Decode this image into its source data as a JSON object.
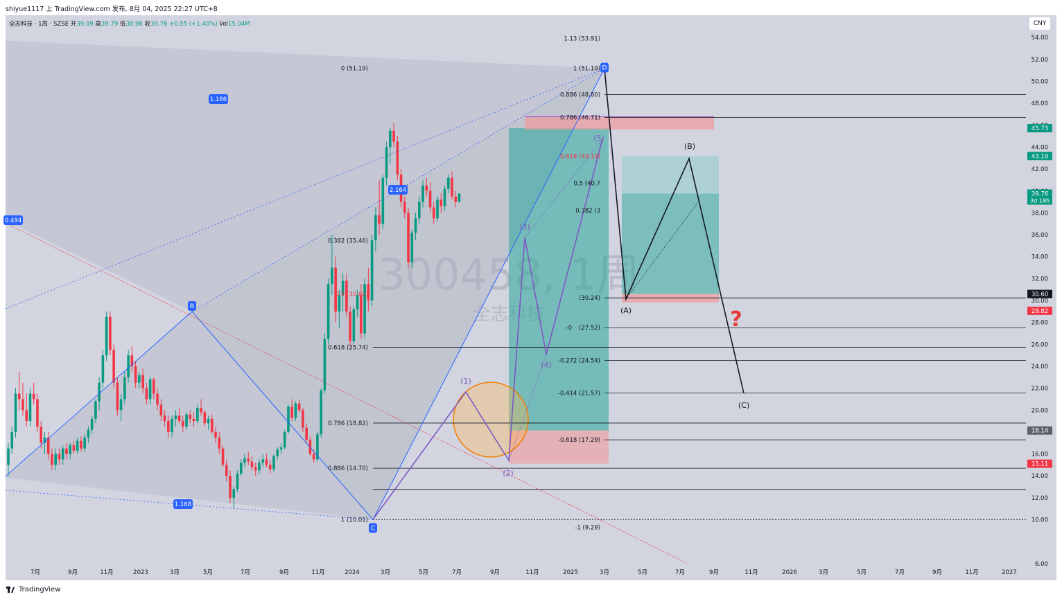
{
  "header": {
    "text": "shiyue1117 上 TradingView.com 发布, 8月 04, 2025 22:27 UTC+8"
  },
  "legend": {
    "symbol": "全志科技 · 1周 · SZSE",
    "open_label": "开",
    "open": "39.09",
    "high_label": "高",
    "high": "39.79",
    "low_label": "低",
    "low": "38.98",
    "close_label": "收",
    "close": "39.76",
    "change": "+0.55 (+1.40%)",
    "vol_label": "Vol",
    "vol": "15.04M"
  },
  "currency_button": "CNY",
  "footer": {
    "brand": "TradingView"
  },
  "colors": {
    "background": "#d2d5e0",
    "up": "#089981",
    "down": "#f23645",
    "harmonic": "#2962ff",
    "wave": "#7e57c2",
    "target_zone": "#26a69a",
    "stop_zone": "#ef9a9a"
  },
  "chart_data": {
    "type": "candlestick",
    "watermark_main": "300458, 1周",
    "watermark_sub": "全志科技",
    "y_ticks": [
      "54.00",
      "52.00",
      "50.00",
      "48.00",
      "46.00",
      "44.00",
      "42.00",
      "40.00",
      "38.00",
      "36.00",
      "34.00",
      "32.00",
      "30.00",
      "28.00",
      "26.00",
      "24.00",
      "22.00",
      "20.00",
      "18.00",
      "16.00",
      "14.00",
      "12.00",
      "10.00",
      "6.00"
    ],
    "ylim": [
      6,
      56
    ],
    "x_ticks": [
      "7月",
      "9月",
      "11月",
      "2023",
      "3月",
      "5月",
      "7月",
      "9月",
      "11月",
      "2024",
      "3月",
      "5月",
      "7月",
      "9月",
      "11月",
      "2025",
      "3月",
      "5月",
      "7月",
      "9月",
      "11月",
      "2026",
      "3月",
      "5月",
      "7月",
      "9月",
      "11月",
      "2027"
    ],
    "price_labels": [
      {
        "value": "45.73",
        "color": "#089981"
      },
      {
        "value": "43.19",
        "color": "#089981"
      },
      {
        "value": "39.76",
        "sub": "3d 18h",
        "color": "#089981"
      },
      {
        "value": "30.60",
        "color": "#131722"
      },
      {
        "value": "29.82",
        "color": "#f23645"
      },
      {
        "value": "18.14",
        "color": "#5d606b"
      },
      {
        "value": "15.11",
        "color": "#f23645"
      }
    ],
    "harmonic_points": [
      {
        "label": "B",
        "price": 29.0
      },
      {
        "label": "C",
        "price": 10.01
      },
      {
        "label": "D",
        "price": 51.19
      }
    ],
    "ratio_badges": [
      "0.494",
      "1.166",
      "2.164",
      "1.168"
    ],
    "fib_left": [
      {
        "text": "0 (51.19)",
        "price": 51.19,
        "color": "#131722"
      },
      {
        "text": "0.382 (35.46)",
        "price": 35.46,
        "color": "#131722"
      },
      {
        "text": "0.5 (30.60)",
        "price": 30.6,
        "color": "#f23645"
      },
      {
        "text": "0.618 (25.74)",
        "price": 25.74,
        "color": "#131722"
      },
      {
        "text": "0.786 (18.82)",
        "price": 18.82,
        "color": "#131722"
      },
      {
        "text": "0.886 (14.70)",
        "price": 14.7,
        "color": "#131722"
      },
      {
        "text": "1 (10.01)",
        "price": 10.01,
        "color": "#131722"
      }
    ],
    "fib_right": [
      {
        "text": "1.13 (53.91)",
        "price": 53.91,
        "color": "#131722"
      },
      {
        "text": "1 (51.19)",
        "price": 51.19,
        "color": "#131722"
      },
      {
        "text": "0.886 (48.80)",
        "price": 48.8,
        "color": "#131722"
      },
      {
        "text": "0.786 (46.71)",
        "price": 46.71,
        "color": "#131722"
      },
      {
        "text": "0.618 (43.19)",
        "price": 43.19,
        "color": "#f23645"
      },
      {
        "text": "0.5 (40.7",
        "price": 40.7,
        "color": "#131722"
      },
      {
        "text": "0.382 (3",
        "price": 38.2,
        "color": "#131722"
      },
      {
        "text": "(30.24)",
        "price": 30.24,
        "color": "#131722"
      },
      {
        "text": "-0",
        "price": 27.52,
        "color": "#131722"
      },
      {
        "text": "(27.52)",
        "price": 27.52,
        "color": "#131722"
      },
      {
        "text": "-0.272 (24.54)",
        "price": 24.54,
        "color": "#131722"
      },
      {
        "text": "-0.414 (21.57)",
        "price": 21.57,
        "color": "#131722"
      },
      {
        "text": "-0.618 (17.29)",
        "price": 17.29,
        "color": "#131722"
      },
      {
        "text": "-1 (9.29)",
        "price": 9.29,
        "color": "#131722"
      }
    ],
    "elliott_labels": [
      "(1)",
      "(2)",
      "(3)",
      "(4)",
      "(5)"
    ],
    "abc_labels": [
      "(A)",
      "(B)",
      "(C)"
    ],
    "question_mark": "?",
    "candles": [
      [
        15.0,
        17.0,
        14.0,
        16.5
      ],
      [
        16.5,
        18.5,
        16.0,
        18.0
      ],
      [
        18.0,
        22.0,
        17.5,
        21.5
      ],
      [
        21.5,
        23.5,
        20.0,
        21.0
      ],
      [
        21.0,
        22.5,
        19.5,
        20.0
      ],
      [
        20.0,
        21.5,
        18.5,
        19.0
      ],
      [
        19.0,
        22.0,
        18.5,
        21.5
      ],
      [
        21.5,
        22.5,
        20.5,
        21.0
      ],
      [
        21.0,
        21.5,
        18.0,
        18.5
      ],
      [
        18.5,
        19.0,
        16.5,
        17.0
      ],
      [
        17.0,
        18.0,
        16.0,
        17.5
      ],
      [
        17.5,
        18.0,
        15.5,
        16.0
      ],
      [
        16.0,
        16.5,
        14.5,
        15.0
      ],
      [
        15.0,
        16.5,
        14.5,
        16.0
      ],
      [
        16.0,
        16.5,
        15.0,
        15.5
      ],
      [
        15.5,
        16.8,
        15.0,
        16.5
      ],
      [
        16.5,
        17.0,
        15.5,
        16.0
      ],
      [
        16.0,
        17.0,
        15.5,
        16.8
      ],
      [
        16.8,
        17.2,
        16.0,
        16.3
      ],
      [
        16.3,
        17.5,
        16.0,
        17.2
      ],
      [
        17.2,
        17.6,
        16.2,
        16.5
      ],
      [
        16.5,
        17.8,
        16.2,
        17.5
      ],
      [
        17.5,
        18.5,
        17.0,
        18.2
      ],
      [
        18.2,
        19.5,
        17.8,
        19.2
      ],
      [
        19.2,
        21.0,
        18.8,
        20.8
      ],
      [
        20.8,
        23.0,
        20.0,
        22.5
      ],
      [
        22.5,
        25.5,
        22.0,
        25.0
      ],
      [
        25.0,
        29.0,
        24.5,
        28.5
      ],
      [
        28.5,
        29.0,
        25.0,
        25.5
      ],
      [
        25.5,
        26.0,
        22.0,
        22.5
      ],
      [
        22.5,
        23.0,
        19.5,
        20.0
      ],
      [
        20.0,
        21.5,
        19.0,
        21.0
      ],
      [
        21.0,
        23.5,
        20.5,
        23.0
      ],
      [
        23.0,
        25.5,
        22.5,
        25.0
      ],
      [
        25.0,
        25.8,
        23.5,
        24.0
      ],
      [
        24.0,
        24.5,
        22.0,
        22.5
      ],
      [
        22.5,
        23.5,
        22.0,
        23.2
      ],
      [
        23.2,
        23.8,
        21.5,
        22.0
      ],
      [
        22.0,
        22.5,
        20.5,
        21.0
      ],
      [
        21.0,
        23.0,
        20.5,
        22.8
      ],
      [
        22.8,
        23.0,
        21.0,
        21.5
      ],
      [
        21.5,
        22.0,
        20.0,
        20.5
      ],
      [
        20.5,
        21.0,
        19.0,
        19.5
      ],
      [
        19.5,
        20.0,
        18.5,
        19.0
      ],
      [
        19.0,
        19.5,
        17.5,
        18.0
      ],
      [
        18.0,
        19.5,
        17.5,
        19.2
      ],
      [
        19.2,
        20.0,
        18.5,
        19.5
      ],
      [
        19.5,
        20.2,
        18.8,
        19.0
      ],
      [
        19.0,
        19.5,
        18.0,
        18.5
      ],
      [
        18.5,
        19.8,
        18.2,
        19.6
      ],
      [
        19.6,
        20.0,
        18.8,
        19.2
      ],
      [
        19.2,
        19.8,
        18.5,
        19.0
      ],
      [
        19.0,
        20.5,
        18.8,
        20.2
      ],
      [
        20.2,
        21.0,
        19.5,
        19.8
      ],
      [
        19.8,
        20.0,
        18.5,
        18.8
      ],
      [
        18.8,
        19.5,
        18.2,
        19.2
      ],
      [
        19.2,
        19.6,
        17.8,
        18.0
      ],
      [
        18.0,
        18.5,
        17.0,
        17.5
      ],
      [
        17.5,
        18.0,
        16.0,
        16.5
      ],
      [
        16.5,
        16.8,
        14.8,
        15.0
      ],
      [
        15.0,
        15.5,
        13.5,
        14.0
      ],
      [
        14.0,
        14.5,
        11.5,
        12.0
      ],
      [
        12.0,
        13.0,
        11.0,
        12.8
      ],
      [
        12.8,
        14.5,
        12.5,
        14.2
      ],
      [
        14.2,
        15.5,
        14.0,
        15.2
      ],
      [
        15.2,
        16.0,
        14.8,
        15.6
      ],
      [
        15.6,
        16.2,
        15.0,
        15.3
      ],
      [
        15.3,
        15.8,
        14.5,
        14.8
      ],
      [
        14.8,
        15.2,
        14.0,
        14.5
      ],
      [
        14.5,
        15.5,
        14.2,
        15.2
      ],
      [
        15.2,
        16.0,
        14.8,
        15.5
      ],
      [
        15.5,
        16.0,
        14.8,
        15.0
      ],
      [
        15.0,
        15.4,
        14.2,
        14.6
      ],
      [
        14.6,
        16.0,
        14.4,
        15.8
      ],
      [
        15.8,
        16.6,
        15.5,
        16.4
      ],
      [
        16.4,
        17.0,
        16.0,
        16.6
      ],
      [
        16.6,
        18.2,
        16.4,
        18.0
      ],
      [
        18.0,
        20.5,
        17.8,
        20.3
      ],
      [
        20.3,
        21.0,
        19.0,
        19.3
      ],
      [
        19.3,
        20.8,
        19.0,
        20.6
      ],
      [
        20.6,
        21.0,
        19.8,
        20.0
      ],
      [
        20.0,
        20.2,
        18.0,
        18.4
      ],
      [
        18.4,
        18.8,
        17.0,
        17.3
      ],
      [
        17.3,
        17.6,
        15.8,
        16.0
      ],
      [
        16.0,
        16.4,
        15.2,
        15.5
      ],
      [
        15.5,
        18.0,
        15.3,
        17.8
      ],
      [
        17.8,
        22.0,
        17.5,
        21.8
      ],
      [
        21.8,
        27.0,
        21.5,
        26.5
      ],
      [
        26.5,
        32.0,
        26.0,
        31.5
      ],
      [
        31.5,
        36.0,
        30.5,
        33.0
      ],
      [
        33.0,
        34.0,
        28.0,
        29.0
      ],
      [
        29.0,
        31.0,
        27.5,
        30.5
      ],
      [
        30.5,
        32.5,
        29.0,
        31.8
      ],
      [
        31.8,
        32.5,
        28.5,
        29.0
      ],
      [
        29.0,
        29.5,
        25.8,
        26.3
      ],
      [
        26.3,
        29.5,
        26.0,
        29.2
      ],
      [
        29.2,
        31.0,
        28.5,
        30.5
      ],
      [
        30.5,
        31.5,
        26.5,
        27.0
      ],
      [
        27.0,
        32.0,
        26.5,
        31.5
      ],
      [
        31.5,
        33.0,
        29.0,
        30.0
      ],
      [
        30.0,
        36.0,
        29.5,
        35.5
      ],
      [
        35.5,
        38.5,
        34.5,
        37.8
      ],
      [
        37.8,
        41.0,
        36.0,
        37.0
      ],
      [
        37.0,
        41.5,
        36.5,
        41.2
      ],
      [
        41.2,
        44.5,
        40.5,
        44.0
      ],
      [
        44.0,
        45.8,
        42.5,
        45.5
      ],
      [
        45.5,
        46.2,
        44.0,
        44.5
      ],
      [
        44.5,
        45.0,
        41.0,
        41.5
      ],
      [
        41.5,
        42.0,
        38.5,
        39.0
      ],
      [
        39.0,
        39.5,
        37.5,
        38.0
      ],
      [
        38.0,
        38.5,
        33.0,
        33.5
      ],
      [
        33.5,
        36.5,
        33.0,
        36.2
      ],
      [
        36.2,
        38.0,
        35.5,
        37.5
      ],
      [
        37.5,
        39.5,
        37.0,
        39.0
      ],
      [
        39.0,
        41.0,
        38.5,
        40.5
      ],
      [
        40.5,
        41.2,
        39.5,
        40.0
      ],
      [
        40.0,
        40.8,
        38.0,
        38.5
      ],
      [
        38.5,
        39.0,
        37.0,
        37.5
      ],
      [
        37.5,
        39.5,
        37.2,
        39.2
      ],
      [
        39.2,
        39.8,
        38.0,
        38.6
      ],
      [
        38.6,
        40.5,
        38.2,
        40.2
      ],
      [
        40.2,
        41.5,
        39.8,
        41.2
      ],
      [
        41.2,
        41.8,
        39.2,
        39.5
      ],
      [
        39.5,
        40.0,
        38.5,
        39.0
      ],
      [
        39.0,
        39.79,
        38.98,
        39.76
      ]
    ]
  }
}
